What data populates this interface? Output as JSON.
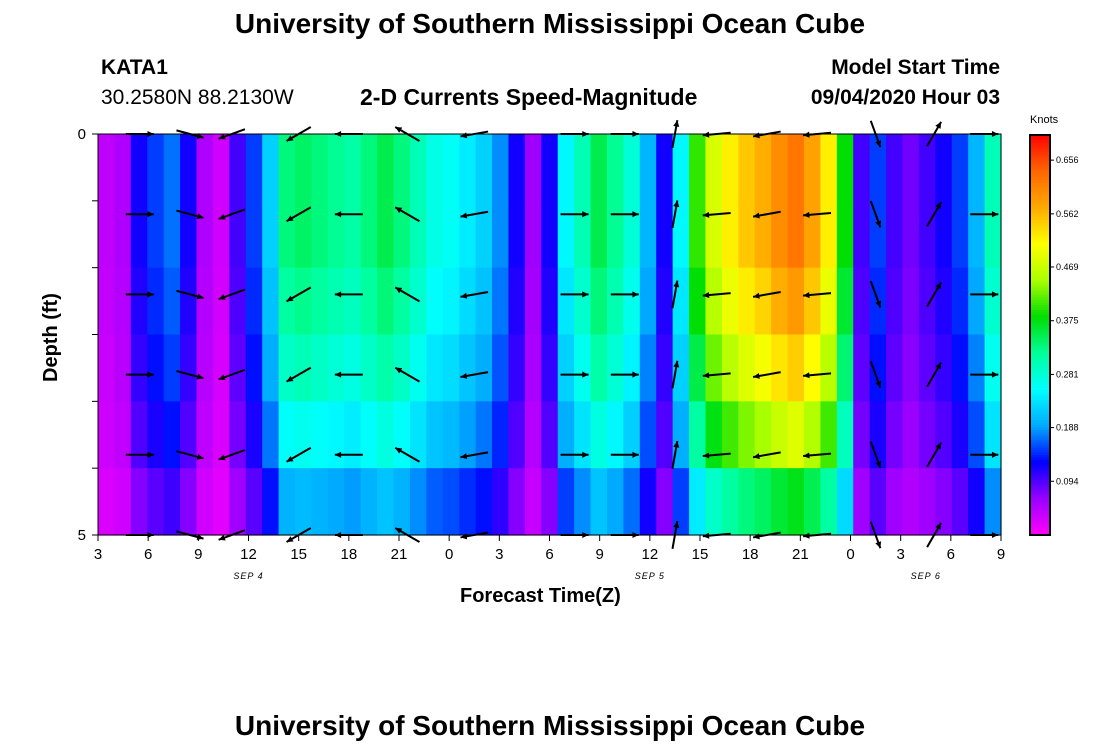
{
  "header": {
    "title_top": "University of Southern Mississippi Ocean Cube",
    "title_bottom": "University of Southern Mississippi Ocean Cube",
    "station": "KATA1",
    "coords": "30.2580N 88.2130W",
    "chart_title": "2-D Currents Speed-Magnitude",
    "model_start_label": "Model Start Time",
    "model_start_value": "09/04/2020 Hour 03"
  },
  "chart_data": {
    "type": "heatmap",
    "title": "2-D Currents Speed-Magnitude",
    "xlabel": "Forecast Time(Z)",
    "ylabel": "Depth (ft)",
    "x_ticks": [
      "3",
      "6",
      "9",
      "12",
      "15",
      "18",
      "21",
      "0",
      "3",
      "6",
      "9",
      "12",
      "15",
      "18",
      "21",
      "0",
      "3",
      "6",
      "9"
    ],
    "x_range_hours": [
      0,
      54
    ],
    "y_ticks": [
      "0",
      "5"
    ],
    "ylim": [
      0,
      5
    ],
    "date_labels": [
      {
        "text": "SEP 4",
        "hour": 9
      },
      {
        "text": "SEP 5",
        "hour": 33
      },
      {
        "text": "SEP 6",
        "hour": 49.5
      }
    ],
    "depth_levels": [
      0,
      1,
      2,
      3,
      4,
      5
    ],
    "time_step_hours": 1,
    "speed_knots_by_hour": [
      0.04,
      0.05,
      0.12,
      0.15,
      0.17,
      0.12,
      0.05,
      0.03,
      0.1,
      0.15,
      0.22,
      0.33,
      0.34,
      0.33,
      0.32,
      0.31,
      0.33,
      0.35,
      0.33,
      0.3,
      0.27,
      0.26,
      0.24,
      0.22,
      0.18,
      0.12,
      0.06,
      0.12,
      0.25,
      0.3,
      0.35,
      0.32,
      0.28,
      0.2,
      0.12,
      0.25,
      0.4,
      0.48,
      0.52,
      0.55,
      0.57,
      0.6,
      0.62,
      0.58,
      0.52,
      0.38,
      0.1,
      0.15,
      0.1,
      0.08,
      0.1,
      0.12,
      0.15,
      0.2,
      0.3
    ],
    "depth_factor": [
      1.0,
      1.0,
      0.95,
      0.88,
      0.78,
      0.6
    ],
    "colorbar": {
      "unit": "Knots",
      "ticks": [
        0.094,
        0.188,
        0.281,
        0.375,
        0.469,
        0.562,
        0.656
      ],
      "range": [
        0,
        0.7
      ],
      "stops": [
        "#ff00ff",
        "#9900ff",
        "#0000ff",
        "#00aaff",
        "#00ffff",
        "#00ff99",
        "#00dd00",
        "#aaff00",
        "#ffff00",
        "#ffaa00",
        "#ff6600",
        "#ff0000"
      ]
    },
    "vector_times_hours": [
      2.5,
      5.5,
      8,
      12,
      15,
      18.5,
      22.5,
      28.5,
      31.5,
      34.5,
      37,
      40,
      43,
      46.5,
      50,
      53
    ],
    "vector_angles_deg": [
      0,
      -15,
      200,
      210,
      180,
      150,
      190,
      0,
      0,
      80,
      185,
      190,
      185,
      290,
      60,
      0
    ]
  }
}
